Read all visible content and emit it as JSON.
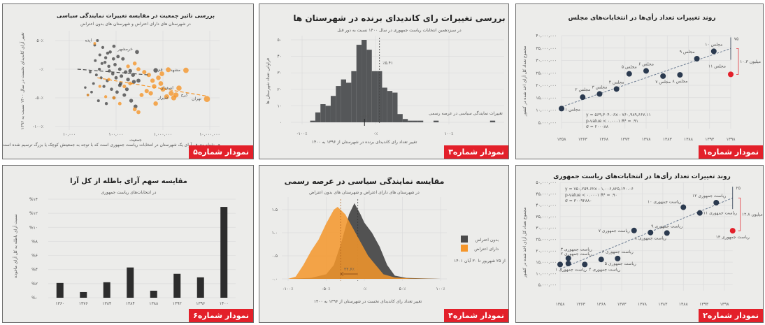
{
  "colors": {
    "dark": "#2b3a4f",
    "gray": "#4a4a4a",
    "orange": "#f5962a",
    "red": "#e3202a"
  },
  "chart_data": [
    {
      "id": "c1",
      "type": "scatter",
      "badge": "نمودار شماره۱",
      "title": "روند تغییرات تعداد رأی‌ها در انتخابات‌های مجلس",
      "ylabel": "مجموع تعداد کل آرای اخذ شده در کشور",
      "xticks": [
        "۱۳۵۸",
        "۱۳۶۳",
        "۱۳۶۸",
        "۱۳۷۳",
        "۱۳۷۸",
        "۱۳۸۳",
        "۱۳۸۸",
        "۱۳۹۳",
        "۱۳۹۸"
      ],
      "xtick_values": [
        1358,
        1363,
        1368,
        1373,
        1378,
        1383,
        1388,
        1393,
        1398
      ],
      "yticks": [
        "۵,۰۰۰,۰۰۰",
        "۱۰,۰۰۰,۰۰۰",
        "۱۵,۰۰۰,۰۰۰",
        "۲۰,۰۰۰,۰۰۰",
        "۲۵,۰۰۰,۰۰۰",
        "۳۰,۰۰۰,۰۰۰",
        "۳۵,۰۰۰,۰۰۰",
        "۴۰,۰۰۰,۰۰۰"
      ],
      "ytick_values": [
        5000000,
        10000000,
        15000000,
        20000000,
        25000000,
        30000000,
        35000000,
        40000000
      ],
      "xlim": [
        1358,
        1398
      ],
      "ylim": [
        0,
        40000000
      ],
      "points": [
        {
          "label": "مجلس ۱",
          "x": 1358,
          "y": 10600000
        },
        {
          "label": "مجلس ۲",
          "x": 1363,
          "y": 15200000
        },
        {
          "label": "مجلس ۳",
          "x": 1367,
          "y": 16500000
        },
        {
          "label": "مجلس ۴",
          "x": 1371,
          "y": 18500000
        },
        {
          "label": "مجلس ۵",
          "x": 1374,
          "y": 24600000
        },
        {
          "label": "مجلس ۶",
          "x": 1378,
          "y": 25800000
        },
        {
          "label": "مجلس ۷",
          "x": 1382,
          "y": 23700000
        },
        {
          "label": "مجلس ۸",
          "x": 1386,
          "y": 24200000
        },
        {
          "label": "مجلس ۹",
          "x": 1390,
          "y": 30700000
        },
        {
          "label": "مجلس ۱۰",
          "x": 1394,
          "y": 33700000
        },
        {
          "label": "مجلس ۱۱",
          "x": 1398,
          "y": 24400000,
          "highlight": true
        }
      ],
      "trend": [
        [
          1358,
          11300000
        ],
        [
          1398,
          34800000
        ]
      ],
      "equation": "y = ۵۶۹,۳۰۴.۰۶x - ۷۶۰,۹۸۹,۶۶۷.۱۱",
      "stats": "p-value < ۰.۰۰۰۱     R² = .۹۱",
      "sigma": "σ = ۲۰۰۰۸۸",
      "band_label": "۷۵",
      "gap_label": "۱۰.۳ میلیون"
    },
    {
      "id": "c2",
      "type": "scatter",
      "badge": "نمودار شماره۲",
      "title": "روند تغییرات تعداد رأی‌ها در انتخابات‌های ریاست جمهوری",
      "ylabel": "مجموع تعداد کل آرای اخذ شده در کشور",
      "xticks": [
        "۱۳۵۸",
        "۱۳۶۳",
        "۱۳۶۸",
        "۱۳۷۳",
        "۱۳۷۸",
        "۱۳۸۳",
        "۱۳۸۸",
        "۱۳۹۳",
        "۱۳۹۸"
      ],
      "xtick_values": [
        1358,
        1363,
        1368,
        1373,
        1378,
        1383,
        1388,
        1393,
        1398
      ],
      "yticks": [
        "۵,۰۰۰,۰۰۰",
        "۱۰,۰۰۰,۰۰۰",
        "۱۵,۰۰۰,۰۰۰",
        "۲۰,۰۰۰,۰۰۰",
        "۲۵,۰۰۰,۰۰۰",
        "۳۰,۰۰۰,۰۰۰",
        "۳۵,۰۰۰,۰۰۰",
        "۴۰,۰۰۰,۰۰۰",
        "۴۵,۰۰۰,۰۰۰",
        "۵۰,۰۰۰,۰۰۰"
      ],
      "ytick_values": [
        5000000,
        10000000,
        15000000,
        20000000,
        25000000,
        30000000,
        35000000,
        40000000,
        45000000,
        50000000
      ],
      "xlim": [
        1358,
        1400
      ],
      "ylim": [
        0,
        50000000
      ],
      "points": [
        {
          "label": "ریاست جمهوری ۱",
          "x": 1358,
          "y": 14000000
        },
        {
          "label": "ریاست جمهوری ۲",
          "x": 1360,
          "y": 14400000
        },
        {
          "label": "ریاست جمهوری ۳",
          "x": 1360,
          "y": 16700000
        },
        {
          "label": "ریاست جمهوری ۴",
          "x": 1364,
          "y": 14000000
        },
        {
          "label": "ریاست جمهوری ۵",
          "x": 1368,
          "y": 16200000
        },
        {
          "label": "ریاست جمهوری ۶",
          "x": 1372,
          "y": 16600000
        },
        {
          "label": "ریاست جمهوری ۷",
          "x": 1376,
          "y": 28900000
        },
        {
          "label": "ریاست جمهوری ۸",
          "x": 1380,
          "y": 28000000
        },
        {
          "label": "ریاست جمهوری ۹",
          "x": 1384,
          "y": 27800000
        },
        {
          "label": "ریاست جمهوری ۱۰",
          "x": 1388,
          "y": 39100000
        },
        {
          "label": "ریاست جمهوری ۱۱",
          "x": 1392,
          "y": 36600000
        },
        {
          "label": "ریاست جمهوری ۱۲",
          "x": 1396,
          "y": 41100000
        },
        {
          "label": "ریاست جمهوری ۱۳",
          "x": 1400,
          "y": 28800000,
          "highlight": true
        }
      ],
      "trend": [
        [
          1358,
          12000000
        ],
        [
          1400,
          43200000
        ]
      ],
      "equation": "y = ۷۵۰,۲۵۹.۶۲x - ۱,۰۰۶,۸۲۵,۱۴۰.۰۶",
      "stats": "p-value < ۰.۰۰۰۱     R² = .۹۰",
      "sigma": "σ = ۳۰۰۹۲۸۸۰",
      "band_label": "۲۵",
      "gap_label": "۱۲.۸ میلیون"
    },
    {
      "id": "c3",
      "type": "bar",
      "subtype": "histogram",
      "badge": "نمودار شماره۳",
      "title": "بررسی تغییرات رای کاندیدای برنده در شهرستان ها",
      "subtitle": "در سیزدهمین انتخابات ریاست جمهوری در سال ۱۴۰۰ نسبت به دور قبل",
      "xlabel": "تغییر تعداد رای کاندیدای برنده در شهرستان از ۱۳۹۶ به ۱۴۰۰",
      "ylabel": "فراوانی تعداد شهرستان ها",
      "xticks": [
        "-۱۰۰٪",
        "۰٪",
        "۱۰۰٪"
      ],
      "xtick_values": [
        -100,
        0,
        100
      ],
      "yticks": [
        "۰",
        "۱۰",
        "۲۰",
        "۳۰",
        "۴۰",
        "۵۰"
      ],
      "ytick_values": [
        0,
        10,
        20,
        30,
        40,
        50
      ],
      "xlim": [
        -110,
        160
      ],
      "ylim": [
        0,
        53
      ],
      "bin_start": -89,
      "bin_width": 7,
      "counts": [
        1,
        6,
        11,
        10,
        16,
        22,
        26,
        24,
        31,
        47,
        50,
        44,
        31,
        31,
        21,
        19,
        18,
        5,
        2,
        1,
        1,
        1,
        0,
        0,
        1,
        0,
        0,
        0,
        0,
        0,
        0,
        0,
        0,
        0,
        0,
        1
      ],
      "mean_line": 5.41,
      "mean_label": "٪۵.۴۱",
      "median_mark": -15,
      "median_label": "-٪۱۵",
      "outlier_label": "تغییرات نمایندگی سیاسی در عرصه رسمی"
    },
    {
      "id": "c4",
      "type": "area",
      "subtype": "density",
      "badge": "نمودار شماره۴",
      "title": "مقایسه نمایندگی سیاسی در عرصه رسمی",
      "subtitle": "در شهرستان های دارای اعتراض و شهرستان های بدون اعتراض",
      "xlabel": "تغییر تعداد رای کاندیدای نخست در شهرستان از ۱۳۹۶ به ۱۴۰۰",
      "xticks": [
        "-۱۰۰٪",
        "-۵۰٪",
        "۰٪",
        "۵۰٪",
        "۱۰۰٪"
      ],
      "xtick_values": [
        -100,
        -50,
        0,
        50,
        100
      ],
      "yticks": [
        "۰.۰",
        "۰.۵",
        "۱.۰",
        "۱.۵"
      ],
      "ytick_values": [
        0,
        0.5,
        1,
        1.5
      ],
      "xlim": [
        -100,
        100
      ],
      "ylim": [
        0,
        1.65
      ],
      "series": [
        {
          "name": "بدون اعتراض",
          "color": "#4a4a4a",
          "mean": -8.5,
          "points": [
            [
              -100,
              0
            ],
            [
              -70,
              0.02
            ],
            [
              -50,
              0.1
            ],
            [
              -40,
              0.3
            ],
            [
              -30,
              0.8
            ],
            [
              -20,
              1.4
            ],
            [
              -13,
              1.64
            ],
            [
              -5,
              1.4
            ],
            [
              0,
              1.22
            ],
            [
              10,
              1.0
            ],
            [
              20,
              0.7
            ],
            [
              30,
              0.3
            ],
            [
              40,
              0.07
            ],
            [
              55,
              0.02
            ],
            [
              100,
              0
            ]
          ]
        },
        {
          "name": "دارای اعتراض",
          "color": "#f5962a",
          "mean": -31.1,
          "points": [
            [
              -100,
              0
            ],
            [
              -90,
              0.05
            ],
            [
              -80,
              0.3
            ],
            [
              -70,
              0.6
            ],
            [
              -60,
              0.85
            ],
            [
              -50,
              1.2
            ],
            [
              -40,
              1.5
            ],
            [
              -35,
              1.56
            ],
            [
              -25,
              1.4
            ],
            [
              -15,
              1.1
            ],
            [
              -5,
              0.8
            ],
            [
              5,
              0.5
            ],
            [
              15,
              0.3
            ],
            [
              25,
              0.1
            ],
            [
              40,
              0.03
            ],
            [
              60,
              0.01
            ],
            [
              100,
              0
            ]
          ]
        }
      ],
      "diff_label": "۲۲.۶٪",
      "legend_note": "از ۲۵ شهریور تا ۳۰ آبان ۱۴۰۱",
      "legend": "right"
    },
    {
      "id": "c5",
      "type": "scatter",
      "badge": "نمودار شماره۵",
      "title": "بررسی تاثیر جمعیت در مقایسه تغییرات نمایندگی سیاسی",
      "subtitle": "در شهرستان های دارای اعتراض و شهرستان های بدون اعتراض",
      "xlabel": "جمعیت",
      "ylabel": "تغییر آرای کاندیدای نخست در سال ۱۴۰۰ نسبت به ۱۳۹۶",
      "note": "هر نقطه معرف آرای یک شهرستان در انتخابات ریاست جمهوری است که با توجه به جمعیتش کوچک یا بزرگ ترسیم شده است",
      "xscale": "log",
      "xlim": [
        10000,
        12000000
      ],
      "ylim": [
        -100,
        55
      ],
      "xticks": [
        "۱۰,۰۰۰",
        "۱۰۰,۰۰۰",
        "۱,۰۰۰,۰۰۰",
        "۱۰,۰۰۰,۰۰۰"
      ],
      "xtick_values": [
        10000,
        100000,
        1000000,
        10000000
      ],
      "yticks": [
        "-۱۰۰٪",
        "-۵۰٪",
        "۰٪",
        "۵۰٪"
      ],
      "ytick_values": [
        -100,
        -50,
        0,
        50
      ],
      "series": [
        {
          "name": "بدون اعتراض",
          "color": "#4a4a4a",
          "points": [
            [
              28000,
              -5
            ],
            [
              40000,
              50
            ],
            [
              35000,
              42
            ],
            [
              52000,
              38
            ],
            [
              90000,
              40
            ],
            [
              75000,
              30
            ],
            [
              45000,
              25
            ],
            [
              60000,
              20
            ],
            [
              110000,
              22
            ],
            [
              140000,
              18
            ],
            [
              50000,
              10
            ],
            [
              70000,
              5
            ],
            [
              95000,
              8
            ],
            [
              120000,
              0
            ],
            [
              160000,
              -5
            ],
            [
              200000,
              -3
            ],
            [
              38000,
              -10
            ],
            [
              48000,
              -15
            ],
            [
              65000,
              -20
            ],
            [
              85000,
              -8
            ],
            [
              130000,
              -12
            ],
            [
              180000,
              -18
            ],
            [
              240000,
              -22
            ],
            [
              33000,
              -25
            ],
            [
              55000,
              -30
            ],
            [
              80000,
              -35
            ],
            [
              105000,
              -40
            ],
            [
              150000,
              -45
            ],
            [
              210000,
              -55
            ],
            [
              260000,
              -65
            ],
            [
              30000,
              -40
            ],
            [
              42000,
              -55
            ],
            [
              62000,
              -60
            ],
            [
              90000,
              -50
            ],
            [
              120000,
              -28
            ],
            [
              280000,
              30
            ],
            [
              700000,
              -2
            ],
            [
              22000,
              -32
            ],
            [
              25000,
              -45
            ],
            [
              58000,
              12
            ],
            [
              72000,
              -3
            ],
            [
              100000,
              -15
            ],
            [
              125000,
              -25
            ],
            [
              170000,
              -35
            ],
            [
              44000,
              0
            ],
            [
              36000,
              15
            ],
            [
              66000,
              28
            ],
            [
              88000,
              18
            ],
            [
              230000,
              -10
            ],
            [
              300000,
              -20
            ]
          ],
          "labels": [
            [
              "ایذه",
              40000,
              50
            ],
            [
              "خرمشهر",
              300000,
              35
            ]
          ]
        },
        {
          "name": "دارای اعتراض",
          "color": "#f5962a",
          "points": [
            [
              35000,
              45
            ],
            [
              180000,
              5
            ],
            [
              250000,
              10
            ],
            [
              300000,
              0
            ],
            [
              400000,
              -5
            ],
            [
              500000,
              -10
            ],
            [
              600000,
              -20
            ],
            [
              800000,
              -15
            ],
            [
              900000,
              -25
            ],
            [
              1300000,
              -1
            ],
            [
              3100000,
              -2
            ],
            [
              2200000,
              -33
            ],
            [
              1900000,
              -45
            ],
            [
              1700000,
              -50
            ],
            [
              1500000,
              -42
            ],
            [
              8700000,
              -52
            ],
            [
              450000,
              -38
            ],
            [
              350000,
              -45
            ],
            [
              700000,
              -60
            ],
            [
              250000,
              -70
            ],
            [
              300000,
              -75
            ],
            [
              120000,
              -60
            ],
            [
              90000,
              -50
            ],
            [
              60000,
              -48
            ],
            [
              150000,
              -30
            ],
            [
              200000,
              -25
            ],
            [
              1000000,
              -35
            ],
            [
              1200000,
              -48
            ],
            [
              950000,
              -8
            ],
            [
              650000,
              -30
            ],
            [
              25000,
              -45
            ],
            [
              45000,
              -30
            ],
            [
              70000,
              -18
            ],
            [
              550000,
              -42
            ]
          ],
          "labels": [
            [
              "تهران",
              8700000,
              -52
            ],
            [
              "مشهد",
              3100000,
              -2
            ],
            [
              "قم",
              1300000,
              -1
            ],
            [
              "اصفهان",
              2200000,
              -33
            ],
            [
              "کرج",
              1900000,
              -45
            ],
            [
              "شیراز",
              1700000,
              -50
            ]
          ]
        }
      ],
      "trends": [
        {
          "color": "#4a4a4a",
          "points": [
            [
              15000,
              0
            ],
            [
              500000,
              -10
            ]
          ]
        },
        {
          "color": "#f5962a",
          "points": [
            [
              40000,
              -15
            ],
            [
              8700000,
              -47
            ]
          ]
        }
      ]
    },
    {
      "id": "c6",
      "type": "bar",
      "badge": "نمودار شماره۶",
      "title": "مقایسه سهم آرای باطله از کل آرا",
      "subtitle": "در انتخابات‌های ریاست جمهوری",
      "ylabel": "نسبت آرای باطله به کل آرای ماخوذه",
      "categories": [
        "۱۳۶۰",
        "۱۳۷۶",
        "۱۳۸۴",
        "۱۳۸۴",
        "۱۳۸۸",
        "۱۳۹۲",
        "۱۳۹۶",
        "۱۴۰۰"
      ],
      "values": [
        2.1,
        0.8,
        2.2,
        4.3,
        1.0,
        3.4,
        2.9,
        12.9
      ],
      "yticks": [
        "%۰",
        "%۲",
        "%۴",
        "%۶",
        "%۸",
        "%۱۰",
        "%۱۲",
        "%۱۴"
      ],
      "ytick_values": [
        0,
        2,
        4,
        6,
        8,
        10,
        12,
        14
      ],
      "ylim": [
        0,
        14
      ],
      "grid": true
    }
  ]
}
